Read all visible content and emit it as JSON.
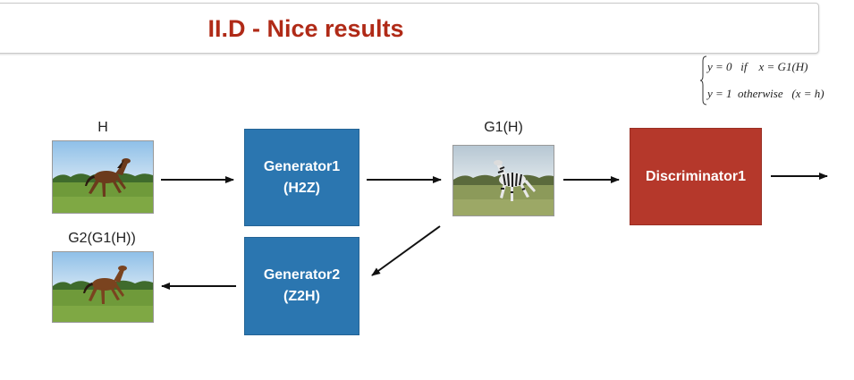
{
  "title": "II.D - Nice results",
  "equation": {
    "line1": "y = 0   if    x = G1(H)",
    "line2": "y = 1  otherwise   (x = h)"
  },
  "labels": {
    "input": "H",
    "g1_output": "G1(H)",
    "reconstruction": "G2(G1(H))"
  },
  "generator1": {
    "line1": "Generator1",
    "line2": "(H2Z)"
  },
  "generator2": {
    "line1": "Generator2",
    "line2": "(Z2H)"
  },
  "discriminator": {
    "label": "Discriminator1"
  },
  "colors": {
    "title": "#b02a17",
    "generator": "#2b76b0",
    "discriminator": "#b5382b"
  }
}
